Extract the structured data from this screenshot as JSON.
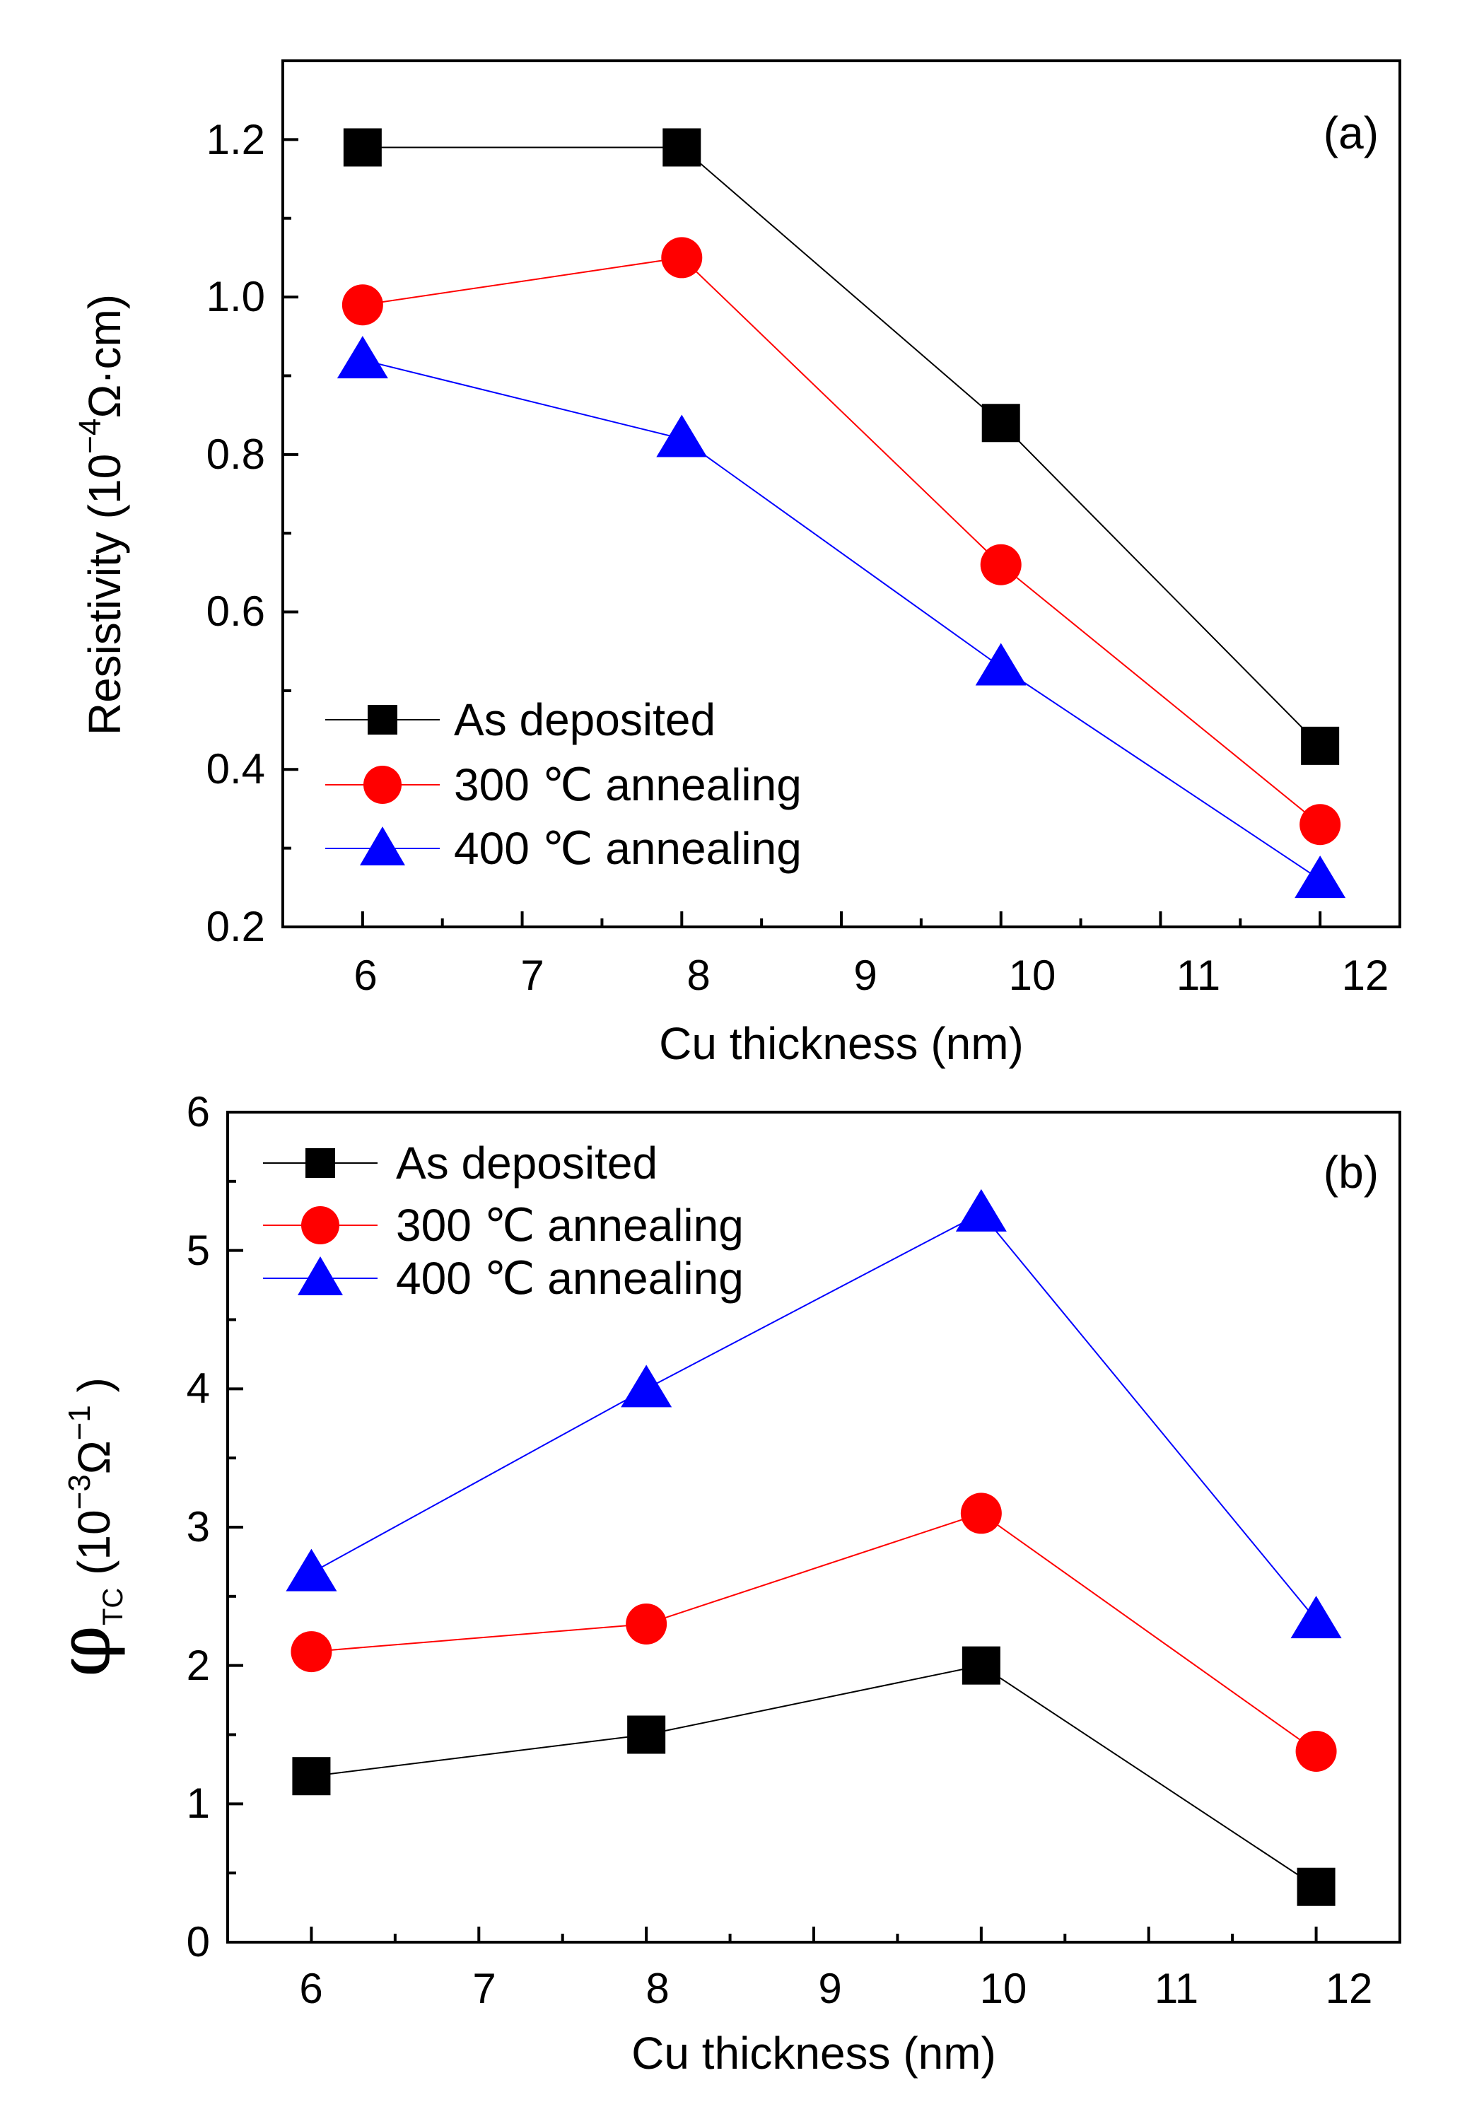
{
  "chart_data": [
    {
      "id": "a",
      "type": "line",
      "panel_label": "(a)",
      "xlabel": "Cu thickness (nm)",
      "ylabel": {
        "prefix": "Resistivity (10",
        "sup": "−4",
        "suffix": "Ω·cm)"
      },
      "x": [
        6,
        8,
        10,
        12
      ],
      "xlim": [
        5.5,
        12.5
      ],
      "ylim": [
        0.2,
        1.3
      ],
      "xticks": [
        "6",
        "7",
        "8",
        "9",
        "10",
        "11",
        "12"
      ],
      "yticks": [
        "0.2",
        "0.4",
        "0.6",
        "0.8",
        "1.0",
        "1.2"
      ],
      "legend_position": "bottom-left",
      "series": [
        {
          "name": "As deposited",
          "marker": "square",
          "color": "#000000",
          "values": [
            1.19,
            1.19,
            0.84,
            0.43
          ]
        },
        {
          "name": "300 ℃ annealing",
          "marker": "circle",
          "color": "#ff0000",
          "values": [
            0.99,
            1.05,
            0.66,
            0.33
          ]
        },
        {
          "name": "400 ℃ annealing",
          "marker": "triangle",
          "color": "#0000ff",
          "values": [
            0.92,
            0.82,
            0.53,
            0.26
          ]
        }
      ]
    },
    {
      "id": "b",
      "type": "line",
      "panel_label": "(b)",
      "xlabel": "Cu thickness (nm)",
      "ylabel": {
        "phi": "φ",
        "sub": "TC",
        "prefix": " (10",
        "sup": "−3",
        "mid": "Ω",
        "sup2": "−1",
        "suffix": " )"
      },
      "x": [
        6,
        8,
        10,
        12
      ],
      "xlim": [
        5.5,
        12.5
      ],
      "ylim": [
        0,
        6
      ],
      "xticks": [
        "6",
        "7",
        "8",
        "9",
        "10",
        "11",
        "12"
      ],
      "yticks": [
        "0",
        "1",
        "2",
        "3",
        "4",
        "5",
        "6"
      ],
      "legend_position": "top-left",
      "series": [
        {
          "name": "As deposited",
          "marker": "square",
          "color": "#000000",
          "values": [
            1.2,
            1.5,
            2.0,
            0.4
          ]
        },
        {
          "name": "300 ℃ annealing",
          "marker": "circle",
          "color": "#ff0000",
          "values": [
            2.1,
            2.3,
            3.1,
            1.38
          ]
        },
        {
          "name": "400 ℃ annealing",
          "marker": "triangle",
          "color": "#0000ff",
          "values": [
            2.67,
            4.0,
            5.27,
            2.33
          ]
        }
      ]
    }
  ]
}
